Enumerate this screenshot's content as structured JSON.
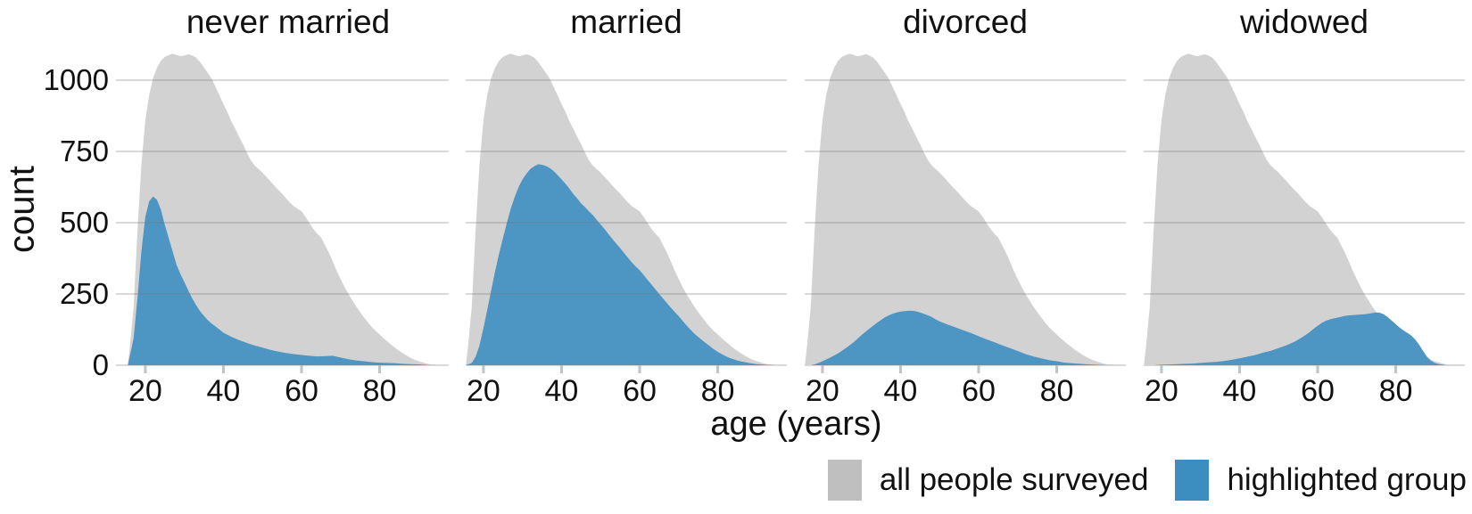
{
  "axis": {
    "y_label": "count",
    "x_label": "age (years)"
  },
  "legend": {
    "items": [
      {
        "label": "all people surveyed",
        "swatch_color": "#bfbfbf"
      },
      {
        "label": "highlighted group",
        "swatch_color": "#3d8ec0"
      }
    ]
  },
  "colors": {
    "all_fill": "#d2d2d2",
    "highlight_fill": "#4d95c3",
    "grid": "rgba(120,120,120,0.28)",
    "tick_mark": "#c2c2c2",
    "text": "#111111"
  },
  "chart_data": {
    "type": "area",
    "title": "",
    "xlabel": "age (years)",
    "ylabel": "count",
    "facets": [
      "never married",
      "married",
      "divorced",
      "widowed"
    ],
    "x_ticks": [
      20,
      40,
      60,
      80
    ],
    "y_ticks": [
      0,
      250,
      500,
      750,
      1000
    ],
    "x_domain": [
      15.45,
      97.7
    ],
    "y_domain": [
      0,
      1160
    ],
    "grid": "horizontal-only",
    "legend_position": "bottom-right",
    "series": [
      {
        "name": "all people surveyed",
        "facet": "all",
        "points": [
          [
            15.5,
            0
          ],
          [
            16,
            60
          ],
          [
            17,
            205
          ],
          [
            18,
            480
          ],
          [
            19,
            705
          ],
          [
            20,
            860
          ],
          [
            21,
            950
          ],
          [
            22,
            1008
          ],
          [
            23,
            1044
          ],
          [
            24,
            1068
          ],
          [
            25,
            1082
          ],
          [
            26,
            1088
          ],
          [
            27,
            1093
          ],
          [
            28,
            1088
          ],
          [
            29,
            1084
          ],
          [
            30,
            1087
          ],
          [
            31,
            1091
          ],
          [
            32,
            1087
          ],
          [
            33,
            1079
          ],
          [
            34,
            1064
          ],
          [
            35,
            1045
          ],
          [
            36,
            1026
          ],
          [
            37,
            1005
          ],
          [
            38,
            976
          ],
          [
            39,
            946
          ],
          [
            40,
            916
          ],
          [
            41,
            889
          ],
          [
            42,
            856
          ],
          [
            43,
            830
          ],
          [
            44,
            801
          ],
          [
            45,
            776
          ],
          [
            46,
            746
          ],
          [
            47,
            719
          ],
          [
            48,
            701
          ],
          [
            49,
            688
          ],
          [
            50,
            676
          ],
          [
            51,
            661
          ],
          [
            52,
            646
          ],
          [
            53,
            630
          ],
          [
            54,
            616
          ],
          [
            55,
            602
          ],
          [
            56,
            586
          ],
          [
            57,
            571
          ],
          [
            58,
            558
          ],
          [
            59,
            549
          ],
          [
            60,
            540
          ],
          [
            61,
            521
          ],
          [
            62,
            500
          ],
          [
            63,
            479
          ],
          [
            64,
            462
          ],
          [
            65,
            448
          ],
          [
            66,
            421
          ],
          [
            67,
            395
          ],
          [
            68,
            364
          ],
          [
            69,
            331
          ],
          [
            70,
            302
          ],
          [
            71,
            275
          ],
          [
            72,
            250
          ],
          [
            73,
            228
          ],
          [
            74,
            206
          ],
          [
            75,
            187
          ],
          [
            76,
            168
          ],
          [
            77,
            151
          ],
          [
            78,
            134
          ],
          [
            79,
            120
          ],
          [
            80,
            108
          ],
          [
            81,
            95
          ],
          [
            82,
            83
          ],
          [
            83,
            72
          ],
          [
            84,
            61
          ],
          [
            85,
            51
          ],
          [
            86,
            42
          ],
          [
            87,
            33
          ],
          [
            88,
            26
          ],
          [
            89,
            19
          ],
          [
            90,
            14
          ],
          [
            91,
            10
          ],
          [
            92,
            6
          ],
          [
            93,
            3
          ],
          [
            94,
            1
          ],
          [
            95,
            0
          ]
        ]
      },
      {
        "name": "highlighted group",
        "facet": "never married",
        "points": [
          [
            15.5,
            0
          ],
          [
            16,
            30
          ],
          [
            17,
            95
          ],
          [
            18,
            240
          ],
          [
            19,
            400
          ],
          [
            20,
            521
          ],
          [
            21,
            576
          ],
          [
            22,
            592
          ],
          [
            23,
            580
          ],
          [
            24,
            545
          ],
          [
            25,
            492
          ],
          [
            26,
            445
          ],
          [
            27,
            398
          ],
          [
            28,
            352
          ],
          [
            29,
            320
          ],
          [
            30,
            292
          ],
          [
            31,
            262
          ],
          [
            32,
            235
          ],
          [
            33,
            211
          ],
          [
            34,
            190
          ],
          [
            35,
            173
          ],
          [
            36,
            158
          ],
          [
            37,
            146
          ],
          [
            38,
            136
          ],
          [
            39,
            125
          ],
          [
            40,
            114
          ],
          [
            42,
            100
          ],
          [
            44,
            88
          ],
          [
            46,
            78
          ],
          [
            48,
            69
          ],
          [
            50,
            62
          ],
          [
            52,
            54
          ],
          [
            54,
            48
          ],
          [
            56,
            43
          ],
          [
            58,
            39
          ],
          [
            60,
            36
          ],
          [
            62,
            33
          ],
          [
            64,
            31
          ],
          [
            66,
            32
          ],
          [
            68,
            33
          ],
          [
            70,
            27
          ],
          [
            72,
            21
          ],
          [
            74,
            17
          ],
          [
            76,
            14
          ],
          [
            78,
            11
          ],
          [
            80,
            9
          ],
          [
            82,
            8
          ],
          [
            84,
            7
          ],
          [
            86,
            5
          ],
          [
            88,
            4
          ],
          [
            90,
            3
          ],
          [
            92,
            1
          ],
          [
            95,
            0
          ]
        ]
      },
      {
        "name": "highlighted group",
        "facet": "married",
        "points": [
          [
            15.5,
            0
          ],
          [
            17,
            8
          ],
          [
            18,
            30
          ],
          [
            19,
            70
          ],
          [
            20,
            130
          ],
          [
            21,
            196
          ],
          [
            22,
            265
          ],
          [
            23,
            330
          ],
          [
            24,
            391
          ],
          [
            25,
            446
          ],
          [
            26,
            500
          ],
          [
            27,
            550
          ],
          [
            28,
            590
          ],
          [
            29,
            625
          ],
          [
            30,
            652
          ],
          [
            31,
            672
          ],
          [
            32,
            688
          ],
          [
            33,
            698
          ],
          [
            34,
            705
          ],
          [
            35,
            703
          ],
          [
            36,
            699
          ],
          [
            37,
            692
          ],
          [
            38,
            681
          ],
          [
            39,
            667
          ],
          [
            40,
            652
          ],
          [
            41,
            637
          ],
          [
            42,
            620
          ],
          [
            43,
            601
          ],
          [
            44,
            585
          ],
          [
            45,
            568
          ],
          [
            46,
            555
          ],
          [
            47,
            540
          ],
          [
            48,
            527
          ],
          [
            49,
            510
          ],
          [
            50,
            494
          ],
          [
            51,
            478
          ],
          [
            52,
            460
          ],
          [
            53,
            443
          ],
          [
            54,
            427
          ],
          [
            55,
            411
          ],
          [
            56,
            394
          ],
          [
            57,
            377
          ],
          [
            58,
            361
          ],
          [
            59,
            346
          ],
          [
            60,
            333
          ],
          [
            61,
            317
          ],
          [
            62,
            300
          ],
          [
            63,
            284
          ],
          [
            64,
            267
          ],
          [
            65,
            250
          ],
          [
            66,
            234
          ],
          [
            67,
            218
          ],
          [
            68,
            202
          ],
          [
            69,
            187
          ],
          [
            70,
            172
          ],
          [
            71,
            156
          ],
          [
            72,
            140
          ],
          [
            73,
            125
          ],
          [
            74,
            111
          ],
          [
            75,
            99
          ],
          [
            76,
            88
          ],
          [
            77,
            77
          ],
          [
            78,
            67
          ],
          [
            79,
            56
          ],
          [
            80,
            47
          ],
          [
            81,
            39
          ],
          [
            82,
            32
          ],
          [
            83,
            26
          ],
          [
            84,
            21
          ],
          [
            85,
            17
          ],
          [
            86,
            13
          ],
          [
            87,
            11
          ],
          [
            88,
            8
          ],
          [
            89,
            6
          ],
          [
            90,
            4
          ],
          [
            92,
            2
          ],
          [
            95,
            0
          ]
        ]
      },
      {
        "name": "highlighted group",
        "facet": "divorced",
        "points": [
          [
            17,
            0
          ],
          [
            18,
            3
          ],
          [
            19,
            8
          ],
          [
            20,
            14
          ],
          [
            22,
            27
          ],
          [
            24,
            42
          ],
          [
            26,
            60
          ],
          [
            28,
            81
          ],
          [
            30,
            106
          ],
          [
            32,
            128
          ],
          [
            34,
            149
          ],
          [
            36,
            168
          ],
          [
            37,
            175
          ],
          [
            38,
            181
          ],
          [
            39,
            185
          ],
          [
            40,
            188
          ],
          [
            41,
            190
          ],
          [
            42,
            191
          ],
          [
            43,
            191
          ],
          [
            44,
            189
          ],
          [
            45,
            185
          ],
          [
            46,
            180
          ],
          [
            47,
            175
          ],
          [
            48,
            169
          ],
          [
            49,
            161
          ],
          [
            50,
            154
          ],
          [
            52,
            143
          ],
          [
            54,
            133
          ],
          [
            56,
            123
          ],
          [
            58,
            113
          ],
          [
            60,
            102
          ],
          [
            62,
            91
          ],
          [
            64,
            81
          ],
          [
            66,
            70
          ],
          [
            68,
            60
          ],
          [
            70,
            50
          ],
          [
            72,
            39
          ],
          [
            74,
            31
          ],
          [
            76,
            24
          ],
          [
            78,
            18
          ],
          [
            80,
            14
          ],
          [
            82,
            9
          ],
          [
            84,
            7
          ],
          [
            86,
            5
          ],
          [
            88,
            3
          ],
          [
            90,
            2
          ],
          [
            92,
            1
          ],
          [
            95,
            0
          ]
        ]
      },
      {
        "name": "highlighted group",
        "facet": "widowed",
        "points": [
          [
            18,
            0
          ],
          [
            20,
            2
          ],
          [
            23,
            3
          ],
          [
            26,
            5
          ],
          [
            28,
            6
          ],
          [
            30,
            8
          ],
          [
            32,
            10
          ],
          [
            34,
            12
          ],
          [
            36,
            15
          ],
          [
            38,
            19
          ],
          [
            40,
            24
          ],
          [
            42,
            30
          ],
          [
            44,
            36
          ],
          [
            46,
            44
          ],
          [
            48,
            51
          ],
          [
            50,
            60
          ],
          [
            52,
            70
          ],
          [
            54,
            82
          ],
          [
            55,
            90
          ],
          [
            56,
            98
          ],
          [
            57,
            107
          ],
          [
            58,
            117
          ],
          [
            59,
            128
          ],
          [
            60,
            138
          ],
          [
            61,
            148
          ],
          [
            62,
            155
          ],
          [
            63,
            160
          ],
          [
            64,
            164
          ],
          [
            65,
            167
          ],
          [
            66,
            170
          ],
          [
            67,
            173
          ],
          [
            68,
            175
          ],
          [
            69,
            176
          ],
          [
            70,
            177
          ],
          [
            71,
            178
          ],
          [
            72,
            179
          ],
          [
            73,
            181
          ],
          [
            74,
            183
          ],
          [
            75,
            185
          ],
          [
            76,
            184
          ],
          [
            77,
            178
          ],
          [
            78,
            168
          ],
          [
            79,
            156
          ],
          [
            80,
            144
          ],
          [
            81,
            132
          ],
          [
            82,
            122
          ],
          [
            83,
            113
          ],
          [
            84,
            104
          ],
          [
            85,
            90
          ],
          [
            86,
            72
          ],
          [
            87,
            50
          ],
          [
            88,
            30
          ],
          [
            89,
            16
          ],
          [
            90,
            8
          ],
          [
            91,
            4
          ],
          [
            93,
            0
          ]
        ]
      }
    ]
  }
}
